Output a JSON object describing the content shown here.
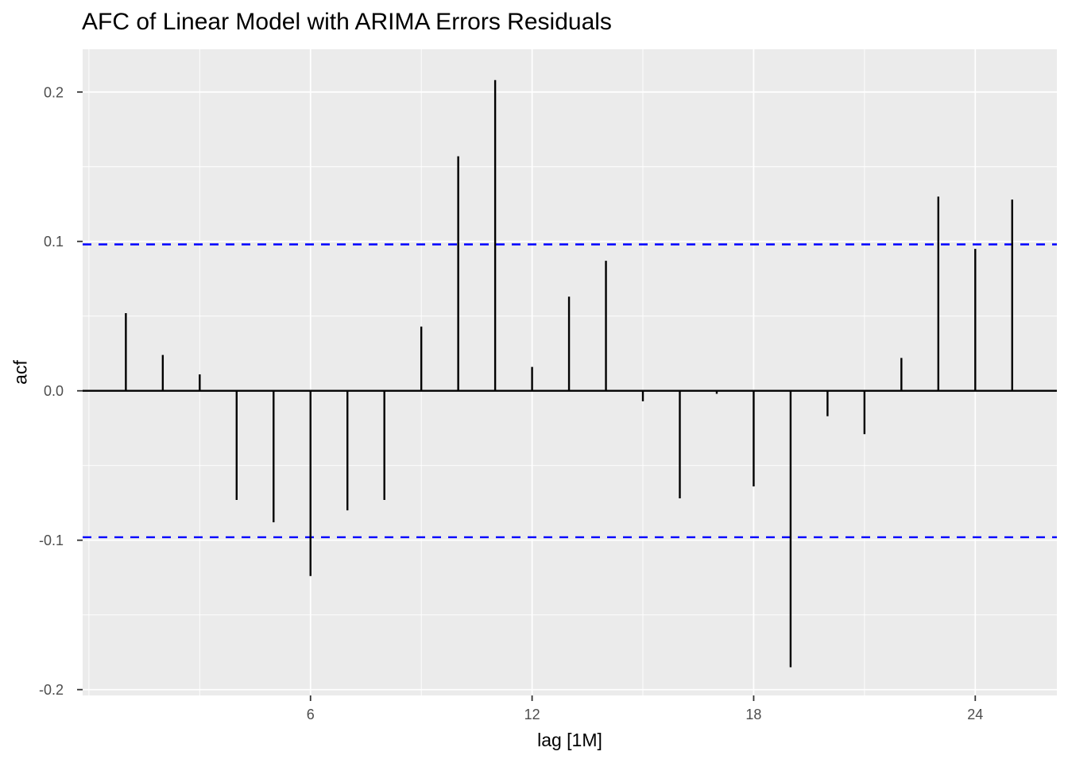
{
  "figure": {
    "title": "AFC of Linear Model with ARIMA Errors Residuals",
    "x_axis_title": "lag [1M]",
    "y_axis_title": "acf"
  },
  "chart_data": {
    "type": "bar",
    "subtype": "acf-lollipop",
    "title": "AFC of Linear Model with ARIMA Errors Residuals",
    "xlabel": "lag [1M]",
    "ylabel": "acf",
    "x": [
      1,
      2,
      3,
      4,
      5,
      6,
      7,
      8,
      9,
      10,
      11,
      12,
      13,
      14,
      15,
      16,
      17,
      18,
      19,
      20,
      21,
      22,
      23,
      24,
      25
    ],
    "values": [
      0.052,
      0.024,
      0.011,
      -0.073,
      -0.088,
      -0.124,
      -0.08,
      -0.073,
      0.043,
      0.157,
      0.208,
      0.016,
      0.063,
      0.087,
      -0.007,
      -0.072,
      -0.002,
      -0.064,
      -0.185,
      -0.017,
      -0.029,
      0.022,
      0.13,
      0.095,
      0.128
    ],
    "confidence_bounds": {
      "upper": 0.098,
      "lower": -0.098,
      "line_style": "dashed"
    },
    "zero_line": 0.0,
    "x_ticks": [
      {
        "v": 6,
        "label": "6"
      },
      {
        "v": 12,
        "label": "12"
      },
      {
        "v": 18,
        "label": "18"
      },
      {
        "v": 24,
        "label": "24"
      }
    ],
    "x_minor": [
      0,
      3,
      9,
      15,
      21
    ],
    "y_ticks": [
      {
        "v": 0.2,
        "label": "0.2"
      },
      {
        "v": 0.1,
        "label": "0.1"
      },
      {
        "v": 0.0,
        "label": "0.0"
      },
      {
        "v": -0.1,
        "label": "-0.1"
      },
      {
        "v": -0.2,
        "label": "-0.2"
      }
    ],
    "y_minor": [
      0.15,
      0.05,
      -0.05,
      -0.15
    ],
    "xlim": [
      -0.17,
      26.21
    ],
    "ylim": [
      -0.2039,
      0.2286
    ],
    "grid": "major+minor",
    "legend": "none"
  },
  "style": {
    "panel_bg": "#EBEBEB",
    "grid_color": "#FFFFFF",
    "bar_color": "#000000",
    "zero_line_color": "#000000",
    "ci_color": "#0000FF",
    "tick_label_color": "#4D4D4D",
    "tick_mark_color": "#333333",
    "title_color": "#000000"
  }
}
